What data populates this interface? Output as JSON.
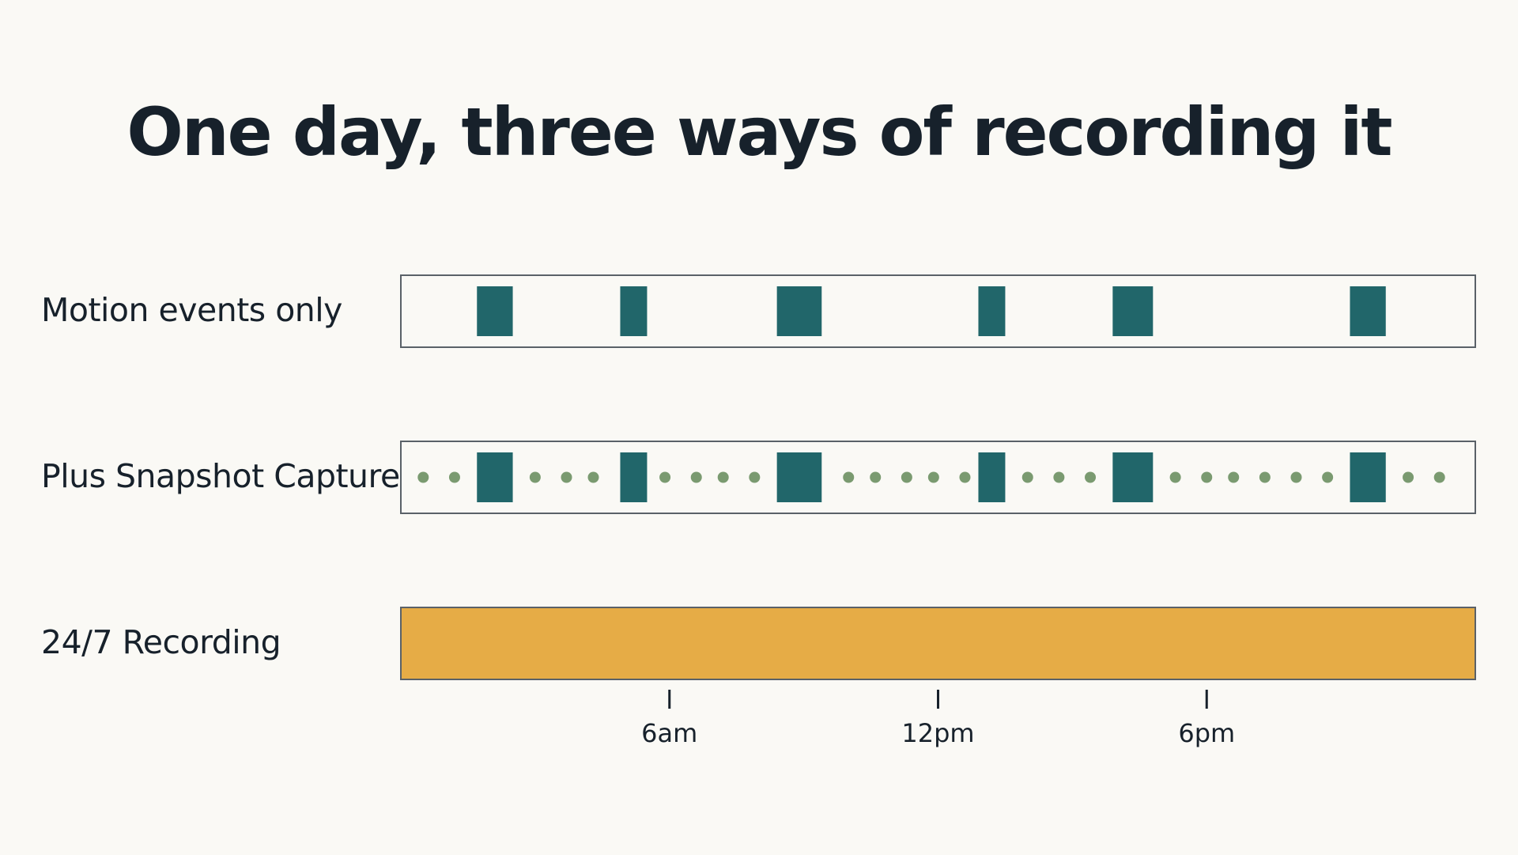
{
  "title": "One day, three ways of recording it",
  "colors": {
    "background": "#faf9f5",
    "event_block": "#21666a",
    "snapshot_dot": "#7a9a70",
    "continuous": "#e6ac46",
    "track_border": "#5a6168",
    "text": "#17212b"
  },
  "chart_data": {
    "type": "timeline",
    "x_unit": "hour of day",
    "xlim": [
      0,
      24
    ],
    "ticks": [
      {
        "hour": 6,
        "label": "6am"
      },
      {
        "hour": 12,
        "label": "12pm"
      },
      {
        "hour": 18,
        "label": "6pm"
      }
    ],
    "rows": [
      {
        "label": "Motion events only",
        "kind": "events",
        "events": [
          [
            1.7,
            2.5
          ],
          [
            4.9,
            5.5
          ],
          [
            8.4,
            9.4
          ],
          [
            12.9,
            13.5
          ],
          [
            15.9,
            16.8
          ],
          [
            21.2,
            22.0
          ]
        ]
      },
      {
        "label": "Plus Snapshot Capture",
        "kind": "events_with_snapshots",
        "events": [
          [
            1.7,
            2.5
          ],
          [
            4.9,
            5.5
          ],
          [
            8.4,
            9.4
          ],
          [
            12.9,
            13.5
          ],
          [
            15.9,
            16.8
          ],
          [
            21.2,
            22.0
          ]
        ],
        "snapshots": [
          0.5,
          1.2,
          3.0,
          3.7,
          4.3,
          5.9,
          6.6,
          7.2,
          7.9,
          10.0,
          10.6,
          11.3,
          11.9,
          12.6,
          14.0,
          14.7,
          15.4,
          17.3,
          18.0,
          18.6,
          19.3,
          20.0,
          20.7,
          22.5,
          23.2
        ]
      },
      {
        "label": "24/7 Recording",
        "kind": "continuous",
        "events": [
          [
            0,
            24
          ]
        ]
      }
    ]
  }
}
